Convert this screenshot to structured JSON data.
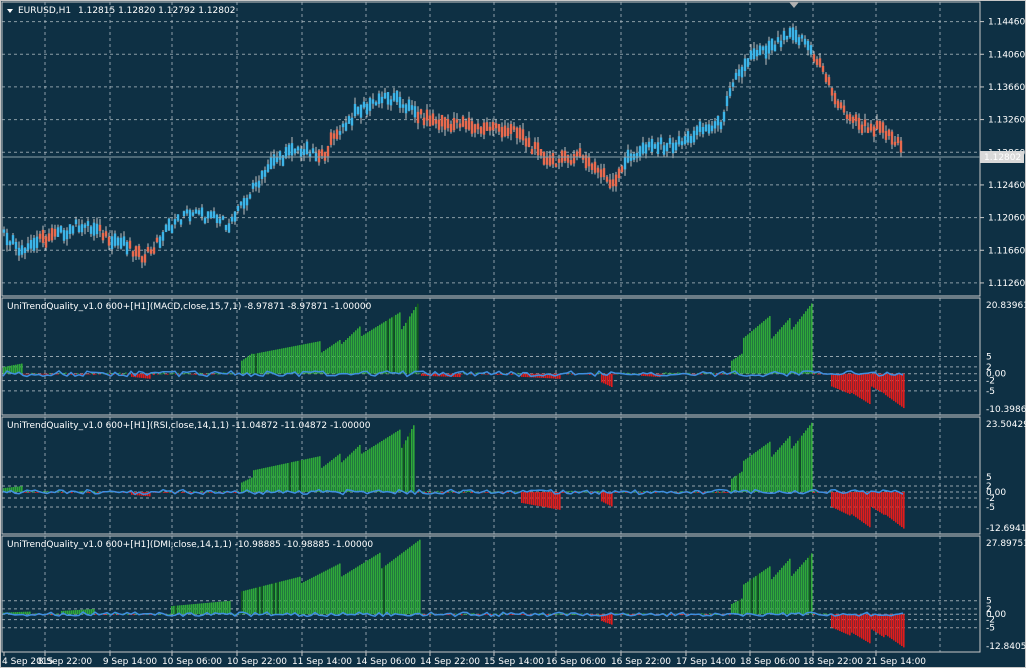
{
  "colors": {
    "background": "#0e3044",
    "frame": "#c8c8c8",
    "grid": "#b7c2c8",
    "bull_candle": "#3cb4e8",
    "bear_candle": "#e86a4e",
    "wick": "#c0c0c0",
    "hist_green": "#2fa83a",
    "hist_dark_green": "#125a1c",
    "hist_red": "#e01c1c",
    "signal_line": "#3f8fe0",
    "price_line": "#8aa0a8"
  },
  "main": {
    "symbol_label": "EURUSD,H1",
    "ohlc_label": "1.12815 1.12820 1.12792 1.12802",
    "current_price": "1.12802",
    "price_ticks": [
      "1.14460",
      "1.14060",
      "1.13660",
      "1.13260",
      "1.12860",
      "1.12460",
      "1.12060",
      "1.11660",
      "1.11260"
    ]
  },
  "indicators": [
    {
      "title": "UniTrendQuality_v1.0 600+[H1](MACD,close,15,7,1) -8.97871 -8.97871 -1.00000",
      "max_label": "20.83961",
      "min_label": "-10.39863",
      "level_labels": [
        "5",
        "2",
        "0.00",
        "-2",
        "-5"
      ]
    },
    {
      "title": "UniTrendQuality_v1.0 600+[H1](RSI,close,14,1,1) -11.04872 -11.04872 -1.00000",
      "max_label": "23.50429",
      "min_label": "-12.6941",
      "level_labels": [
        "5",
        "2",
        "0.00",
        "-2",
        "-5"
      ]
    },
    {
      "title": "UniTrendQuality_v1.0 600+[H1](DMI,close,14,1,1) -10.98885 -10.98885 -1.00000",
      "max_label": "27.89751",
      "min_label": "-12.84058",
      "level_labels": [
        "5",
        "2",
        "0.00",
        "-2",
        "-5"
      ]
    }
  ],
  "time_axis": [
    "4 Sep 2015",
    "8 Sep 22:00",
    "9 Sep 14:00",
    "10 Sep 06:00",
    "10 Sep 22:00",
    "11 Sep 14:00",
    "14 Sep 06:00",
    "14 Sep 22:00",
    "15 Sep 14:00",
    "16 Sep 06:00",
    "16 Sep 22:00",
    "17 Sep 14:00",
    "18 Sep 06:00",
    "18 Sep 22:00",
    "21 Sep 14:00"
  ],
  "chart_data": [
    {
      "type": "candlestick",
      "title": "EURUSD,H1",
      "ylim": [
        1.111,
        1.147
      ],
      "price_path": [
        [
          0,
          1.1192
        ],
        [
          20,
          1.1168
        ],
        [
          40,
          1.1178
        ],
        [
          60,
          1.1186
        ],
        [
          80,
          1.1198
        ],
        [
          100,
          1.1188
        ],
        [
          120,
          1.1176
        ],
        [
          140,
          1.1158
        ],
        [
          155,
          1.117
        ],
        [
          170,
          1.1196
        ],
        [
          190,
          1.1212
        ],
        [
          210,
          1.1206
        ],
        [
          230,
          1.1198
        ],
        [
          250,
          1.1234
        ],
        [
          265,
          1.1264
        ],
        [
          280,
          1.128
        ],
        [
          300,
          1.129
        ],
        [
          320,
          1.1278
        ],
        [
          340,
          1.1314
        ],
        [
          360,
          1.1338
        ],
        [
          380,
          1.1352
        ],
        [
          400,
          1.1348
        ],
        [
          420,
          1.133
        ],
        [
          440,
          1.1322
        ],
        [
          460,
          1.132
        ],
        [
          480,
          1.1316
        ],
        [
          500,
          1.1316
        ],
        [
          520,
          1.1308
        ],
        [
          540,
          1.1282
        ],
        [
          560,
          1.1274
        ],
        [
          580,
          1.1284
        ],
        [
          600,
          1.1262
        ],
        [
          612,
          1.1248
        ],
        [
          625,
          1.1274
        ],
        [
          640,
          1.1288
        ],
        [
          660,
          1.1294
        ],
        [
          680,
          1.1296
        ],
        [
          700,
          1.1312
        ],
        [
          720,
          1.132
        ],
        [
          735,
          1.1372
        ],
        [
          750,
          1.1402
        ],
        [
          770,
          1.1412
        ],
        [
          790,
          1.1428
        ],
        [
          805,
          1.1422
        ],
        [
          820,
          1.1394
        ],
        [
          840,
          1.134
        ],
        [
          860,
          1.132
        ],
        [
          880,
          1.1314
        ],
        [
          900,
          1.1294
        ]
      ],
      "trend_colors": [
        [
          0,
          40,
          "bull"
        ],
        [
          40,
          58,
          "bear"
        ],
        [
          58,
          100,
          "bull"
        ],
        [
          100,
          112,
          "bear"
        ],
        [
          112,
          130,
          "bull"
        ],
        [
          130,
          158,
          "bear"
        ],
        [
          158,
          232,
          "bull"
        ],
        [
          232,
          318,
          "bull"
        ],
        [
          318,
          340,
          "bear"
        ],
        [
          340,
          418,
          "bull"
        ],
        [
          418,
          600,
          "bear"
        ],
        [
          600,
          625,
          "bear"
        ],
        [
          625,
          730,
          "bull"
        ],
        [
          730,
          812,
          "bull"
        ],
        [
          812,
          905,
          "bear"
        ]
      ]
    },
    {
      "type": "histogram",
      "title": "MACD",
      "ylim": [
        -12,
        22
      ],
      "levels": [
        5,
        2,
        0,
        -2,
        -5
      ],
      "green_blocks": [
        [
          0,
          22,
          3
        ],
        [
          240,
          252,
          6
        ],
        [
          252,
          320,
          9.5
        ],
        [
          320,
          340,
          10
        ],
        [
          340,
          360,
          14
        ],
        [
          360,
          400,
          18
        ],
        [
          400,
          418,
          20.8
        ],
        [
          730,
          742,
          6
        ],
        [
          742,
          770,
          17
        ],
        [
          770,
          790,
          16.5
        ],
        [
          790,
          812,
          20.8
        ]
      ],
      "red_blocks": [
        [
          130,
          150,
          -1.5
        ],
        [
          420,
          460,
          -1
        ],
        [
          520,
          560,
          -1.5
        ],
        [
          600,
          612,
          -4
        ],
        [
          640,
          660,
          -1
        ],
        [
          830,
          850,
          -6
        ],
        [
          850,
          870,
          -9
        ],
        [
          870,
          885,
          -6
        ],
        [
          885,
          905,
          -10.4
        ]
      ]
    },
    {
      "type": "histogram",
      "title": "RSI",
      "ylim": [
        -14,
        25
      ],
      "levels": [
        5,
        2,
        0,
        -2,
        -5
      ],
      "green_blocks": [
        [
          0,
          22,
          2
        ],
        [
          240,
          252,
          5
        ],
        [
          252,
          320,
          12
        ],
        [
          320,
          340,
          13
        ],
        [
          340,
          360,
          16
        ],
        [
          360,
          400,
          21
        ],
        [
          400,
          415,
          23.5
        ],
        [
          730,
          742,
          7
        ],
        [
          742,
          770,
          17
        ],
        [
          770,
          790,
          19
        ],
        [
          790,
          812,
          23.5
        ]
      ],
      "red_blocks": [
        [
          130,
          150,
          -1.5
        ],
        [
          520,
          560,
          -6
        ],
        [
          600,
          612,
          -5
        ],
        [
          830,
          850,
          -8
        ],
        [
          850,
          870,
          -12
        ],
        [
          870,
          885,
          -8
        ],
        [
          885,
          905,
          -12.7
        ]
      ]
    },
    {
      "type": "histogram",
      "title": "DMI",
      "ylim": [
        -14,
        29
      ],
      "levels": [
        5,
        2,
        0,
        -2,
        -5
      ],
      "green_blocks": [
        [
          0,
          30,
          1
        ],
        [
          60,
          95,
          2
        ],
        [
          170,
          230,
          5
        ],
        [
          240,
          300,
          14
        ],
        [
          300,
          340,
          19
        ],
        [
          340,
          380,
          23
        ],
        [
          380,
          420,
          27.9
        ],
        [
          730,
          742,
          6
        ],
        [
          742,
          770,
          18
        ],
        [
          770,
          790,
          21
        ],
        [
          790,
          812,
          23
        ]
      ],
      "red_blocks": [
        [
          10,
          30,
          -2
        ],
        [
          600,
          612,
          -4
        ],
        [
          830,
          850,
          -8
        ],
        [
          850,
          870,
          -11
        ],
        [
          870,
          885,
          -9
        ],
        [
          885,
          905,
          -12.8
        ]
      ]
    }
  ]
}
